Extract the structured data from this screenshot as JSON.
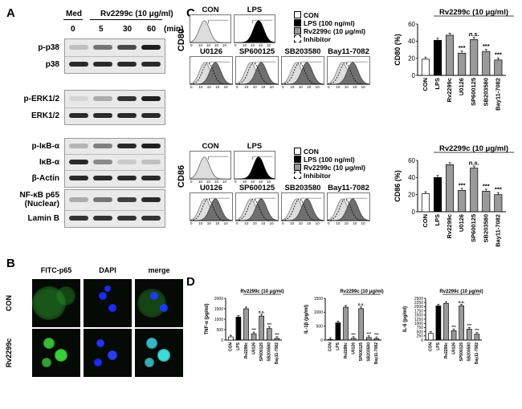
{
  "panelA": {
    "letter": "A",
    "header_med": "Med",
    "header_treat": "Rv2299c (10 μg/ml)",
    "times": [
      "0",
      "5",
      "30",
      "60"
    ],
    "time_unit": "(min)",
    "blots": [
      {
        "label": "p-p38",
        "intensity": [
          0.2,
          0.55,
          0.75,
          0.95
        ]
      },
      {
        "label": "p38",
        "intensity": [
          0.9,
          0.9,
          0.9,
          0.9
        ]
      },
      {
        "label": "p-ERK1/2",
        "intensity": [
          0.1,
          0.3,
          0.85,
          0.95
        ]
      },
      {
        "label": "ERK1/2",
        "intensity": [
          0.9,
          0.9,
          0.9,
          0.9
        ]
      },
      {
        "label": "p-IκB-α",
        "intensity": [
          0.25,
          0.5,
          0.9,
          0.95
        ]
      },
      {
        "label": "IκB-α",
        "intensity": [
          0.9,
          0.45,
          0.15,
          0.2
        ]
      },
      {
        "label": "β-Actin",
        "intensity": [
          0.9,
          0.9,
          0.9,
          0.9
        ]
      },
      {
        "label": "NF-κB p65\n(Nuclear)",
        "intensity": [
          0.3,
          0.55,
          0.8,
          0.9
        ]
      },
      {
        "label": "Lamin B",
        "intensity": [
          0.85,
          0.85,
          0.85,
          0.85
        ]
      }
    ]
  },
  "panelB": {
    "letter": "B",
    "cols": [
      "FITC-p65",
      "DAPI",
      "merge"
    ],
    "rows": [
      "CON",
      "Rv2299c"
    ]
  },
  "panelC": {
    "letter": "C",
    "legend": [
      "CON",
      "LPS (100 ng/ml)",
      "Rv2299c (10 μg/ml)",
      "Inhibitor"
    ],
    "hist_top": [
      "CON",
      "LPS"
    ],
    "hist_bottom": [
      "U0126",
      "SP600125",
      "SB203580",
      "Bay11-7082"
    ],
    "marker1": "CD80",
    "marker2": "CD86",
    "axis_ticks": [
      "0",
      "10",
      "10",
      "10",
      "10"
    ],
    "bar_header": "Rv2299c (10 μg/ml)",
    "ns": "n.s.",
    "stars": "***"
  },
  "chart_data": [
    {
      "type": "bar",
      "title": "",
      "ylabel": "CD80 (%)",
      "ylim": [
        0,
        60
      ],
      "yticks": [
        0,
        20,
        40,
        60
      ],
      "categories": [
        "CON",
        "LPS",
        "Rv2299c",
        "U0126",
        "SP600125",
        "SB203580",
        "Bay11-7082"
      ],
      "values": [
        19,
        41,
        47,
        26,
        42,
        28,
        18
      ],
      "fills": [
        "#ffffff",
        "#000000",
        "#9a9a9a",
        "#9a9a9a",
        "#9a9a9a",
        "#9a9a9a",
        "#9a9a9a"
      ],
      "annotations": [
        "",
        "",
        "",
        "***",
        "n.s.",
        "***",
        "***"
      ]
    },
    {
      "type": "bar",
      "title": "",
      "ylabel": "CD86 (%)",
      "ylim": [
        0,
        60
      ],
      "yticks": [
        0,
        20,
        40,
        60
      ],
      "categories": [
        "CON",
        "LPS",
        "Rv2299c",
        "U0126",
        "SP600125",
        "SB203580",
        "Bay11-7082"
      ],
      "values": [
        21,
        40,
        55,
        25,
        51,
        24,
        20
      ],
      "fills": [
        "#ffffff",
        "#000000",
        "#9a9a9a",
        "#9a9a9a",
        "#9a9a9a",
        "#9a9a9a",
        "#9a9a9a"
      ],
      "annotations": [
        "",
        "",
        "",
        "***",
        "n.s.",
        "***",
        "***"
      ]
    },
    {
      "type": "bar",
      "title": "",
      "ylabel": "TNF-α (pg/ml)",
      "ylim": [
        0,
        2000
      ],
      "yticks": [
        0,
        500,
        1000,
        1500,
        2000
      ],
      "categories": [
        "CON",
        "LPS",
        "Rv2299c",
        "U0126",
        "SP600125",
        "SB203580",
        "Bay11-7082"
      ],
      "values": [
        150,
        1100,
        1500,
        300,
        1150,
        550,
        80
      ],
      "fills": [
        "#ffffff",
        "#000000",
        "#9a9a9a",
        "#9a9a9a",
        "#9a9a9a",
        "#9a9a9a",
        "#9a9a9a"
      ],
      "annotations": [
        "",
        "",
        "",
        "***",
        "n.s.",
        "***",
        "***"
      ]
    },
    {
      "type": "bar",
      "title": "",
      "ylabel": "IL-1β (pg/ml)",
      "ylim": [
        0,
        1500
      ],
      "yticks": [
        0,
        500,
        1000,
        1500
      ],
      "categories": [
        "CON",
        "LPS",
        "Rv2299c",
        "U0126",
        "SP600125",
        "SB203580",
        "Bay11-7082"
      ],
      "values": [
        20,
        620,
        1180,
        60,
        1130,
        90,
        50
      ],
      "fills": [
        "#ffffff",
        "#000000",
        "#9a9a9a",
        "#9a9a9a",
        "#9a9a9a",
        "#9a9a9a",
        "#9a9a9a"
      ],
      "annotations": [
        "",
        "",
        "",
        "***",
        "n.s.",
        "***",
        "***"
      ]
    },
    {
      "type": "bar",
      "title": "",
      "ylabel": "IL-6 (pg/ml)",
      "ylim": [
        0,
        2500
      ],
      "yticks": [
        0,
        250,
        500,
        750,
        1000,
        1250,
        1500,
        1750,
        2000,
        2250,
        2500
      ],
      "categories": [
        "CON",
        "LPS",
        "Rv2299c",
        "U0126",
        "SP600125",
        "SB203580",
        "Bay11-7082"
      ],
      "values": [
        400,
        2050,
        2200,
        560,
        2050,
        650,
        350
      ],
      "fills": [
        "#ffffff",
        "#000000",
        "#9a9a9a",
        "#9a9a9a",
        "#9a9a9a",
        "#9a9a9a",
        "#9a9a9a"
      ],
      "annotations": [
        "",
        "",
        "",
        "***",
        "n.s.",
        "***",
        "***"
      ]
    }
  ],
  "panelD": {
    "letter": "D",
    "header": "Rv2299c (10 μg/ml)",
    "ns": "n.s."
  }
}
